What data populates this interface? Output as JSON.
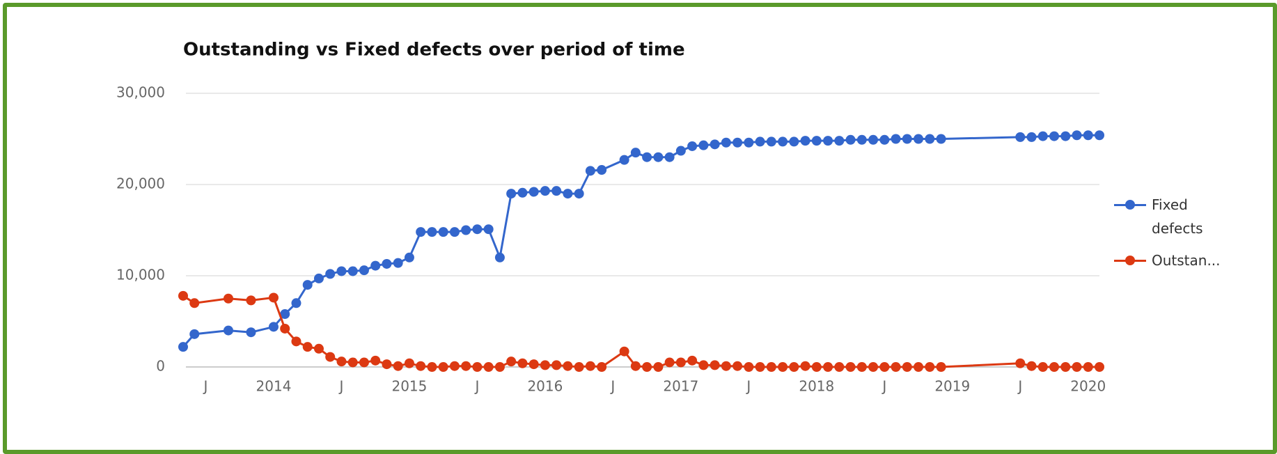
{
  "chart_data": {
    "type": "line",
    "title": "Outstanding vs Fixed defects over period of time",
    "x": [
      "2013-05",
      "2013-06",
      "2013-09",
      "2013-11",
      "2014-01",
      "2014-02",
      "2014-03",
      "2014-04",
      "2014-05",
      "2014-06",
      "2014-07",
      "2014-08",
      "2014-09",
      "2014-10",
      "2014-11",
      "2014-12",
      "2015-01",
      "2015-02",
      "2015-03",
      "2015-04",
      "2015-05",
      "2015-06",
      "2015-07",
      "2015-08",
      "2015-09",
      "2015-10",
      "2015-11",
      "2015-12",
      "2016-01",
      "2016-02",
      "2016-03",
      "2016-04",
      "2016-05",
      "2016-06",
      "2016-08",
      "2016-09",
      "2016-10",
      "2016-11",
      "2016-12",
      "2017-01",
      "2017-02",
      "2017-03",
      "2017-04",
      "2017-05",
      "2017-06",
      "2017-07",
      "2017-08",
      "2017-09",
      "2017-10",
      "2017-11",
      "2017-12",
      "2018-01",
      "2018-02",
      "2018-03",
      "2018-04",
      "2018-05",
      "2018-06",
      "2018-07",
      "2018-08",
      "2018-09",
      "2018-10",
      "2018-11",
      "2018-12",
      "2019-07",
      "2019-08",
      "2019-09",
      "2019-10",
      "2019-11",
      "2019-12",
      "2020-01",
      "2020-02"
    ],
    "series": [
      {
        "name": "Fixed defects",
        "color": "#3366cc",
        "values": [
          2200,
          3600,
          4000,
          3800,
          4400,
          5800,
          7000,
          9000,
          9700,
          10200,
          10500,
          10500,
          10600,
          11100,
          11300,
          11400,
          12000,
          14800,
          14800,
          14800,
          14800,
          15000,
          15100,
          15100,
          12000,
          19000,
          19100,
          19200,
          19300,
          19300,
          19000,
          19000,
          21500,
          21600,
          22700,
          23500,
          23000,
          23000,
          23000,
          23700,
          24200,
          24300,
          24400,
          24600,
          24600,
          24600,
          24700,
          24700,
          24700,
          24700,
          24800,
          24800,
          24800,
          24800,
          24900,
          24900,
          24900,
          24900,
          25000,
          25000,
          25000,
          25000,
          25000,
          25200,
          25200,
          25300,
          25300,
          25300,
          25400,
          25400,
          25400
        ]
      },
      {
        "name": "Outstan...",
        "color": "#dc3912",
        "values": [
          7800,
          7000,
          7500,
          7300,
          7600,
          4200,
          2800,
          2200,
          2000,
          1100,
          600,
          500,
          500,
          700,
          300,
          100,
          400,
          100,
          0,
          0,
          100,
          100,
          0,
          0,
          0,
          600,
          400,
          300,
          200,
          200,
          100,
          0,
          100,
          0,
          1700,
          100,
          0,
          0,
          500,
          500,
          700,
          200,
          200,
          100,
          100,
          0,
          0,
          0,
          0,
          0,
          100,
          0,
          0,
          0,
          0,
          0,
          0,
          0,
          0,
          0,
          0,
          0,
          0,
          400,
          100,
          0,
          0,
          0,
          0,
          0,
          0
        ]
      }
    ],
    "xlim": [
      "2013-05",
      "2020-02"
    ],
    "xticks": [
      {
        "value": "2013-07",
        "label": "J"
      },
      {
        "value": "2014-01",
        "label": "2014"
      },
      {
        "value": "2014-07",
        "label": "J"
      },
      {
        "value": "2015-01",
        "label": "2015"
      },
      {
        "value": "2015-07",
        "label": "J"
      },
      {
        "value": "2016-01",
        "label": "2016"
      },
      {
        "value": "2016-07",
        "label": "J"
      },
      {
        "value": "2017-01",
        "label": "2017"
      },
      {
        "value": "2017-07",
        "label": "J"
      },
      {
        "value": "2018-01",
        "label": "2018"
      },
      {
        "value": "2018-07",
        "label": "J"
      },
      {
        "value": "2019-01",
        "label": "2019"
      },
      {
        "value": "2019-07",
        "label": "J"
      },
      {
        "value": "2020-01",
        "label": "2020"
      }
    ],
    "ylim": [
      0,
      30000
    ],
    "yticks": [
      0,
      {
        "value": 10000,
        "label": "10,000"
      },
      {
        "value": 20000,
        "label": "20,000"
      },
      {
        "value": 30000,
        "label": "30,000"
      }
    ],
    "grid": true,
    "legend": "right"
  }
}
